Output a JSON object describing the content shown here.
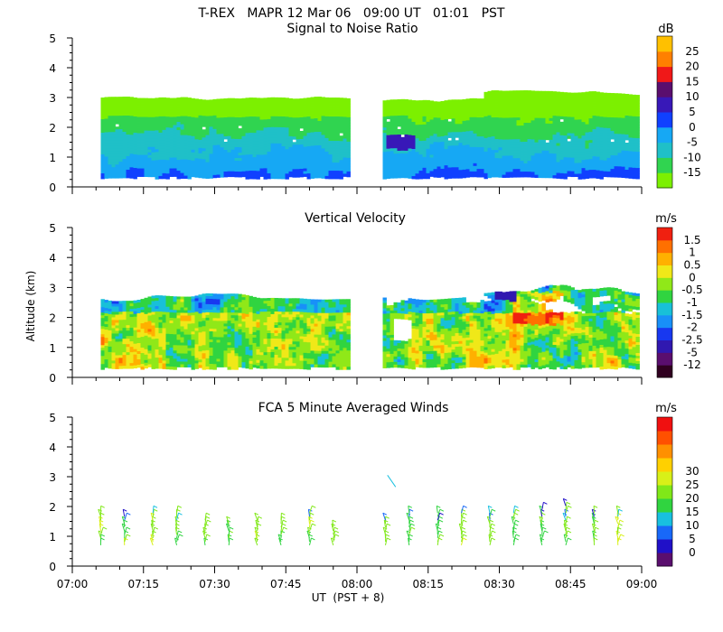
{
  "header": {
    "title": "T-REX   MAPR 12 Mar 06   09:00 UT   01:01   PST"
  },
  "colors": {
    "missing": "#ffffff",
    "axis": "#000000"
  },
  "chart_data": [
    {
      "type": "heatmap",
      "id": "snr",
      "title": "Signal to Noise Ratio",
      "xlabel": "",
      "ylabel": "",
      "xlim": [
        "07:00",
        "09:00"
      ],
      "ylim": [
        0,
        5
      ],
      "y_ticks": [
        "0",
        "1",
        "2",
        "3",
        "4",
        "5"
      ],
      "colorbar": {
        "unit": "dB",
        "labels": [
          "-15",
          "-10",
          "-5",
          "0",
          "5",
          "10",
          "15",
          "20",
          "25"
        ],
        "colors": [
          "#7cf000",
          "#30d450",
          "#1fc0c8",
          "#16a8f4",
          "#1040ff",
          "#3818b8",
          "#5a0e6e",
          "#f01818",
          "#ff8000",
          "#ffc000"
        ]
      },
      "data_gap": [
        "07:59",
        "08:05"
      ]
    },
    {
      "type": "heatmap",
      "id": "vvel",
      "title": "Vertical Velocity",
      "xlabel": "",
      "ylabel": "Altitude (km)",
      "xlim": [
        "07:00",
        "09:00"
      ],
      "ylim": [
        0,
        5
      ],
      "y_ticks": [
        "0",
        "1",
        "2",
        "3",
        "4",
        "5"
      ],
      "colorbar": {
        "unit": "m/s",
        "labels": [
          "-12",
          "-5",
          "-2.5",
          "-2",
          "-1.5",
          "-1",
          "-0.5",
          "0",
          "0.5",
          "1",
          "1.5"
        ],
        "colors": [
          "#300020",
          "#5a0e6e",
          "#3018b0",
          "#1838f0",
          "#1890f8",
          "#18c0d8",
          "#30d440",
          "#90e818",
          "#f0e818",
          "#ffb000",
          "#ff7000",
          "#f02010"
        ]
      },
      "data_gap": [
        "07:59",
        "08:05"
      ]
    },
    {
      "type": "barbs",
      "id": "winds",
      "title": "FCA 5 Minute Averaged Winds",
      "xlabel": "UT  (PST + 8)",
      "ylabel": "",
      "xlim": [
        "07:00",
        "09:00"
      ],
      "ylim": [
        0,
        5
      ],
      "x_ticks": [
        "07:00",
        "07:15",
        "07:30",
        "07:45",
        "08:00",
        "08:15",
        "08:30",
        "08:45",
        "09:00"
      ],
      "y_ticks": [
        "0",
        "1",
        "2",
        "3",
        "4",
        "5"
      ],
      "colorbar": {
        "unit": "m/s",
        "labels": [
          "0",
          "5",
          "10",
          "15",
          "20",
          "25",
          "30"
        ],
        "colors": [
          "#5a0e6e",
          "#2010c8",
          "#1868f8",
          "#18c0e0",
          "#30d440",
          "#80e818",
          "#d8f018",
          "#ffd000",
          "#ff9000",
          "#ff5000",
          "#f01010"
        ]
      },
      "profile_times": [
        "07:06",
        "07:11",
        "07:17",
        "07:22",
        "07:28",
        "07:33",
        "07:39",
        "07:44",
        "07:50",
        "07:55",
        "08:06",
        "08:11",
        "08:17",
        "08:22",
        "08:28",
        "08:33",
        "08:39",
        "08:44",
        "08:50",
        "08:55"
      ],
      "profile_tops_km": [
        1.8,
        1.7,
        1.8,
        1.9,
        1.6,
        1.5,
        1.6,
        1.6,
        1.8,
        1.4,
        1.6,
        1.9,
        1.9,
        1.9,
        1.8,
        1.9,
        2.0,
        2.1,
        1.9,
        1.9
      ],
      "isolated_barbs": [
        {
          "time": "08:07",
          "alt_km": 2.9,
          "speed": 10
        }
      ]
    }
  ]
}
